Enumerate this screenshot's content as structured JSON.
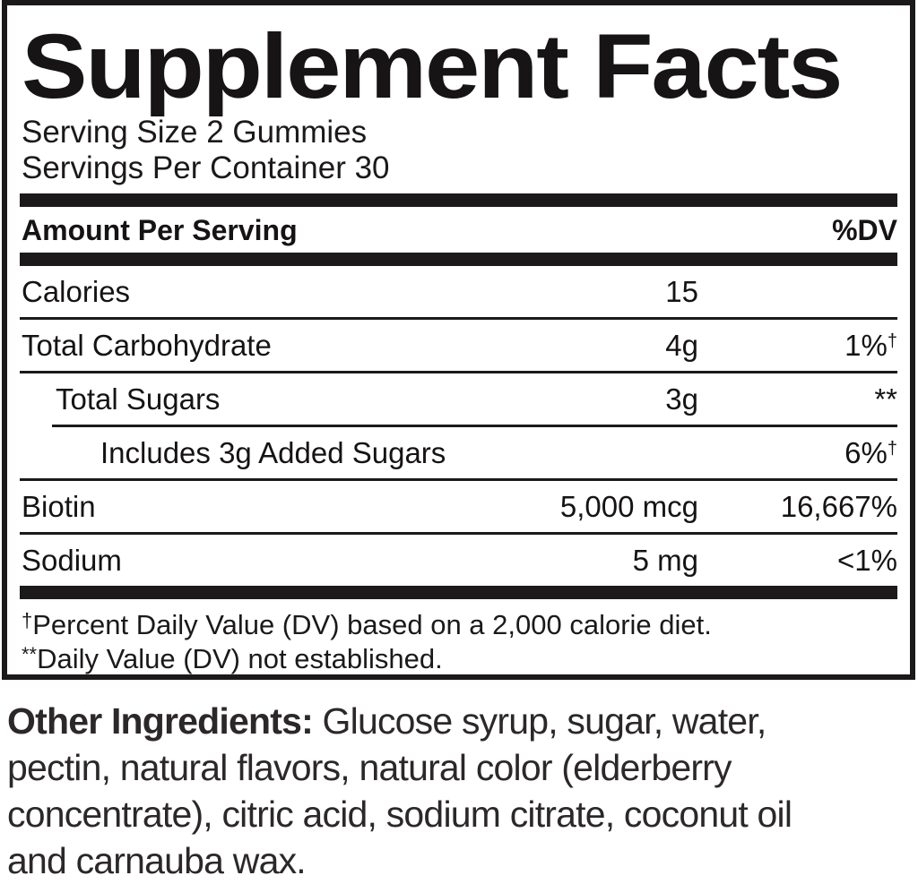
{
  "label": {
    "title": "Supplement Facts",
    "serving_size": "Serving Size 2 Gummies",
    "servings_per_container": "Servings Per Container 30",
    "header": {
      "amount": "Amount Per Serving",
      "dv": "%DV"
    },
    "rows": [
      {
        "name": "Calories",
        "amount": "15",
        "dv": "",
        "indent": 0
      },
      {
        "name": "Total Carbohydrate",
        "amount": "4g",
        "dv": "1%",
        "dv_sup": "†",
        "indent": 0
      },
      {
        "name": "Total Sugars",
        "amount": "3g",
        "dv": "**",
        "indent": 1
      },
      {
        "name": "Includes 3g Added Sugars",
        "amount": "",
        "dv": "6%",
        "dv_sup": "†",
        "indent": 2
      },
      {
        "name": "Biotin",
        "amount": "5,000 mcg",
        "dv": "16,667%",
        "indent": 0
      },
      {
        "name": "Sodium",
        "amount": "5 mg",
        "dv": "<1%",
        "indent": 0
      }
    ],
    "footnotes": [
      {
        "sup": "†",
        "text": "Percent Daily Value (DV) based on a 2,000 calorie diet."
      },
      {
        "sup": "**",
        "text": "Daily Value (DV) not established."
      }
    ]
  },
  "other_ingredients": {
    "lines": [
      {
        "bold": "Other Ingredients:",
        "text": " Glucose syrup, sugar, water,"
      },
      {
        "text": "pectin, natural flavors, natural color (elderberry"
      },
      {
        "text": "concentrate), citric acid, sodium citrate, coconut oil"
      },
      {
        "text": "and carnauba wax."
      }
    ]
  },
  "colors": {
    "panel_ink": "#1c191a",
    "ingredients_ink": "#2c2829",
    "background": "#ffffff"
  }
}
